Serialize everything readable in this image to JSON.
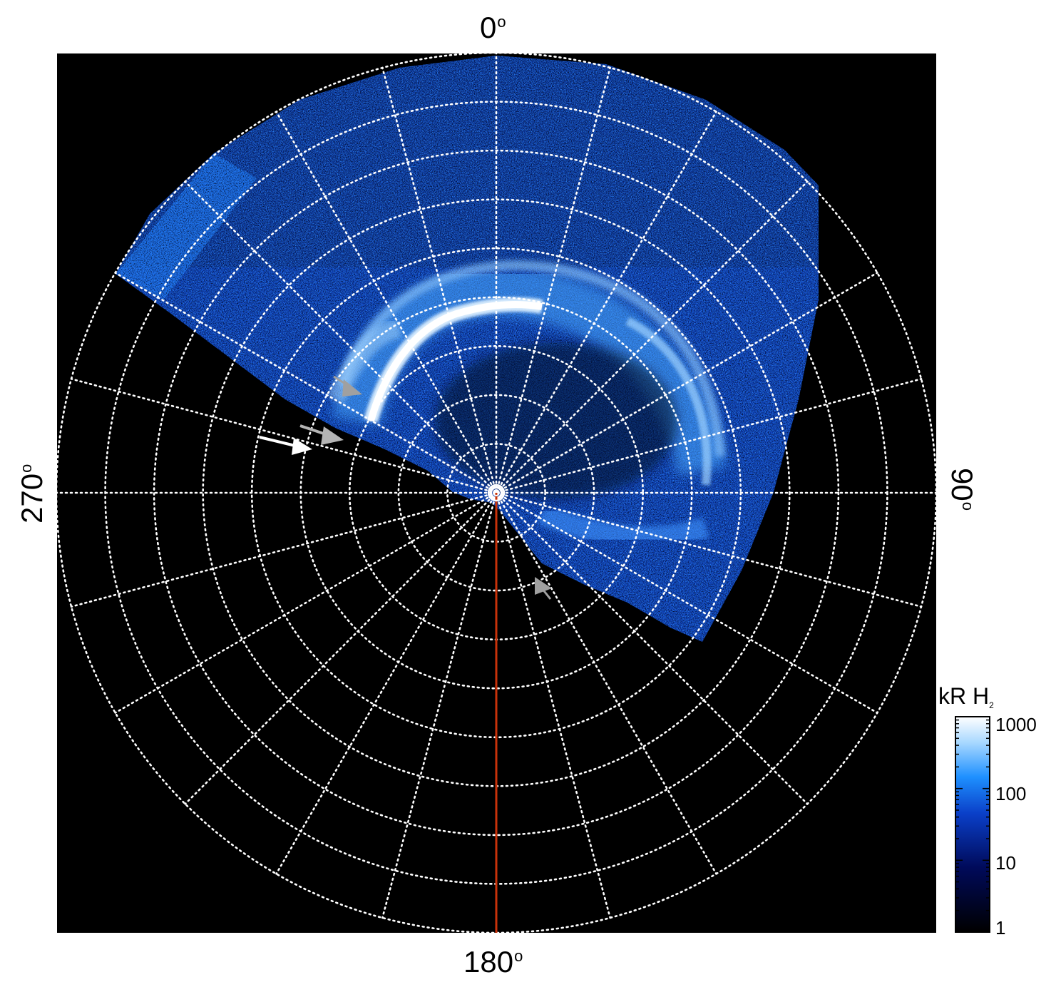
{
  "axis_labels": {
    "top": "0",
    "right": "90",
    "bottom": "180",
    "left": "270",
    "degree_symbol": "o"
  },
  "colorbar": {
    "title_main": "kR H",
    "title_sub": "2",
    "ticks": [
      "1000",
      "100",
      "10",
      "1"
    ],
    "scale": "log",
    "range": [
      1,
      1000
    ],
    "colors": [
      "#000000",
      "#000a5a",
      "#0a3fc8",
      "#1e90ff",
      "#a8d8ff",
      "#ffffff"
    ]
  },
  "polar_grid": {
    "ring_count": 9,
    "spoke_count": 24,
    "grid_color": "#ffffff",
    "grid_style": "dotted"
  },
  "overlays": {
    "meridian_line_color": "#c8320a",
    "arrow_white": "#ffffff",
    "arrow_gray": "#a0a0a0"
  }
}
